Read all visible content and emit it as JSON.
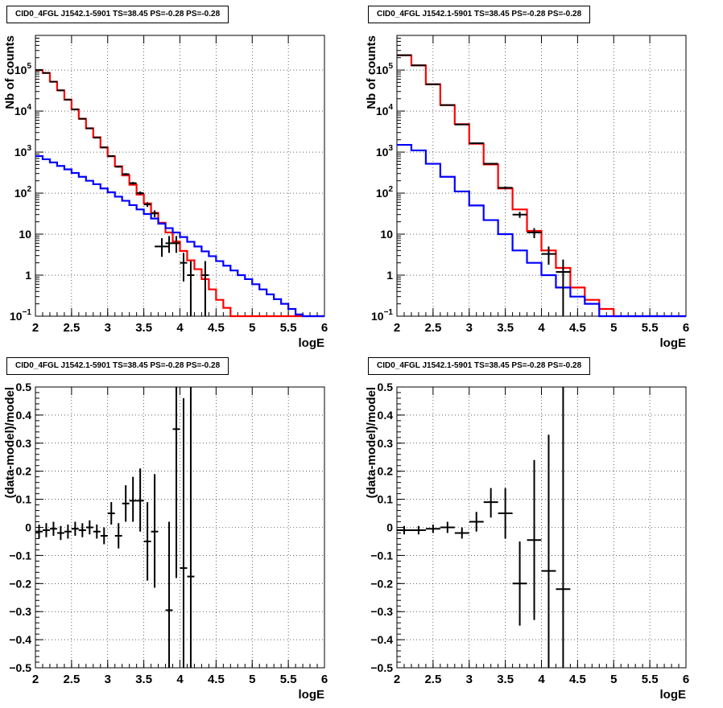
{
  "chart_data": [
    {
      "type": "line",
      "title": "CID0_4FGL J1542.1-5901 TS=38.45 PS=-0.28 PS=-0.28",
      "xlabel": "logE",
      "ylabel": "Nb of counts",
      "log_y": true,
      "xlim": [
        2,
        6
      ],
      "ylim": [
        0.1,
        700000
      ],
      "xticks": [
        "2",
        "2.5",
        "3",
        "3.5",
        "4",
        "4.5",
        "5",
        "5.5",
        "6"
      ],
      "yticks": [
        {
          "v": 0.1,
          "label": "10",
          "exp": "−1"
        },
        {
          "v": 1,
          "label": "1",
          "exp": ""
        },
        {
          "v": 10,
          "label": "10",
          "exp": ""
        },
        {
          "v": 100,
          "label": "10",
          "exp": "2"
        },
        {
          "v": 1000,
          "label": "10",
          "exp": "3"
        },
        {
          "v": 10000,
          "label": "10",
          "exp": "4"
        },
        {
          "v": 100000,
          "label": "10",
          "exp": "5"
        }
      ],
      "grid": true,
      "colors": {
        "total": "#ff0000",
        "background": "#0000ff",
        "data": "#000000"
      },
      "bin_edges": [
        2.0,
        2.1,
        2.2,
        2.3,
        2.4,
        2.5,
        2.6,
        2.7,
        2.8,
        2.9,
        3.0,
        3.1,
        3.2,
        3.3,
        3.4,
        3.5,
        3.6,
        3.7,
        3.8,
        3.9,
        4.0,
        4.1,
        4.2,
        4.3,
        4.4,
        4.5,
        4.6,
        4.7,
        4.8,
        4.9,
        5.0,
        5.1,
        5.2,
        5.3,
        5.4,
        5.5,
        5.6,
        5.7,
        5.8,
        5.9,
        6.0
      ],
      "series": [
        {
          "values": [
            100000,
            85000,
            52000,
            32000,
            19000,
            11000,
            6500,
            3800,
            2300,
            1300,
            790,
            450,
            270,
            160,
            92,
            56,
            33,
            19,
            11,
            6.6,
            3.9,
            2.3,
            1.4,
            0.8,
            0.45,
            0.25,
            0.16,
            0.1,
            0.1,
            0.1,
            0.1,
            0.1,
            0.1,
            0.1,
            0.1,
            0.1,
            0.1,
            0.1,
            0.1,
            0.1
          ]
        },
        {
          "values": [
            800,
            670,
            560,
            460,
            380,
            310,
            250,
            200,
            165,
            130,
            105,
            82,
            65,
            51,
            40,
            31,
            24,
            18,
            14,
            11,
            8.5,
            6.5,
            5.0,
            3.8,
            2.9,
            2.2,
            1.7,
            1.3,
            1.0,
            0.8,
            0.6,
            0.45,
            0.34,
            0.26,
            0.2,
            0.15,
            0.11,
            0.1,
            0.1,
            0.1
          ]
        }
      ],
      "data_points": [
        {
          "x": 2.05,
          "y": 100000,
          "xerr": 0.05,
          "ylo": 99000,
          "yhi": 101000
        },
        {
          "x": 2.15,
          "y": 85000,
          "xerr": 0.05,
          "ylo": 84000,
          "yhi": 86000
        },
        {
          "x": 2.25,
          "y": 52000,
          "xerr": 0.05,
          "ylo": 51000,
          "yhi": 53000
        },
        {
          "x": 2.35,
          "y": 32000,
          "xerr": 0.05,
          "ylo": 31500,
          "yhi": 32500
        },
        {
          "x": 2.45,
          "y": 19000,
          "xerr": 0.05,
          "ylo": 18700,
          "yhi": 19300
        },
        {
          "x": 2.55,
          "y": 11000,
          "xerr": 0.05,
          "ylo": 10800,
          "yhi": 11200
        },
        {
          "x": 2.65,
          "y": 6500,
          "xerr": 0.05,
          "ylo": 6400,
          "yhi": 6600
        },
        {
          "x": 2.75,
          "y": 3800,
          "xerr": 0.05,
          "ylo": 3730,
          "yhi": 3870
        },
        {
          "x": 2.85,
          "y": 2250,
          "xerr": 0.05,
          "ylo": 2200,
          "yhi": 2300
        },
        {
          "x": 2.95,
          "y": 1300,
          "xerr": 0.05,
          "ylo": 1260,
          "yhi": 1340
        },
        {
          "x": 3.05,
          "y": 800,
          "xerr": 0.05,
          "ylo": 770,
          "yhi": 830
        },
        {
          "x": 3.15,
          "y": 440,
          "xerr": 0.05,
          "ylo": 420,
          "yhi": 460
        },
        {
          "x": 3.25,
          "y": 290,
          "xerr": 0.05,
          "ylo": 273,
          "yhi": 307
        },
        {
          "x": 3.35,
          "y": 175,
          "xerr": 0.05,
          "ylo": 162,
          "yhi": 188
        },
        {
          "x": 3.45,
          "y": 100,
          "xerr": 0.05,
          "ylo": 90,
          "yhi": 110
        },
        {
          "x": 3.55,
          "y": 53,
          "xerr": 0.05,
          "ylo": 46,
          "yhi": 60
        },
        {
          "x": 3.65,
          "y": 32,
          "xerr": 0.05,
          "ylo": 26,
          "yhi": 38
        },
        {
          "x": 3.75,
          "y": 5,
          "xerr": 0.1,
          "ylo": 2.8,
          "yhi": 8
        },
        {
          "x": 3.85,
          "y": 6,
          "xerr": 0.05,
          "ylo": 3.5,
          "yhi": 9
        },
        {
          "x": 3.95,
          "y": 6,
          "xerr": 0.05,
          "ylo": 3.5,
          "yhi": 9
        },
        {
          "x": 4.05,
          "y": 2,
          "xerr": 0.05,
          "ylo": 0.7,
          "yhi": 3.5
        },
        {
          "x": 4.15,
          "y": 1,
          "xerr": 0.05,
          "ylo": 0.1,
          "yhi": 2.2
        },
        {
          "x": 4.35,
          "y": 1,
          "xerr": 0.05,
          "ylo": 0.1,
          "yhi": 2.2
        }
      ]
    },
    {
      "type": "line",
      "title": "CID0_4FGL J1542.1-5901 TS=38.45 PS=-0.28 PS=-0.28",
      "xlabel": "logE",
      "ylabel": "Nb of counts",
      "log_y": true,
      "xlim": [
        2,
        6
      ],
      "ylim": [
        0.1,
        700000
      ],
      "xticks": [
        "2",
        "2.5",
        "3",
        "3.5",
        "4",
        "4.5",
        "5",
        "5.5",
        "6"
      ],
      "yticks": [
        {
          "v": 0.1,
          "label": "10",
          "exp": "−1"
        },
        {
          "v": 1,
          "label": "1",
          "exp": ""
        },
        {
          "v": 10,
          "label": "10",
          "exp": ""
        },
        {
          "v": 100,
          "label": "10",
          "exp": "2"
        },
        {
          "v": 1000,
          "label": "10",
          "exp": "3"
        },
        {
          "v": 10000,
          "label": "10",
          "exp": "4"
        },
        {
          "v": 100000,
          "label": "10",
          "exp": "5"
        }
      ],
      "grid": true,
      "colors": {
        "total": "#ff0000",
        "background": "#0000ff",
        "data": "#000000"
      },
      "bin_edges": [
        2.0,
        2.2,
        2.4,
        2.6,
        2.8,
        3.0,
        3.2,
        3.4,
        3.6,
        3.8,
        4.0,
        4.2,
        4.4,
        4.6,
        4.8,
        5.0,
        5.2,
        5.4,
        5.6,
        5.8,
        6.0
      ],
      "series": [
        {
          "values": [
            230000,
            130000,
            45000,
            14000,
            4800,
            1600,
            500,
            130,
            40,
            12,
            4,
            1.5,
            0.5,
            0.25,
            0.15,
            0.1,
            0.1,
            0.1,
            0.1,
            0.1
          ]
        },
        {
          "values": [
            1500,
            1100,
            520,
            250,
            110,
            50,
            22,
            10,
            4,
            2,
            1,
            0.5,
            0.3,
            0.2,
            0.1,
            0.1,
            0.1,
            0.1,
            0.1,
            0.1
          ]
        }
      ],
      "data_points": [
        {
          "x": 2.1,
          "y": 230000,
          "xerr": 0.1,
          "ylo": 229000,
          "yhi": 231000
        },
        {
          "x": 2.3,
          "y": 130000,
          "xerr": 0.1,
          "ylo": 129000,
          "yhi": 131000
        },
        {
          "x": 2.5,
          "y": 45000,
          "xerr": 0.1,
          "ylo": 44600,
          "yhi": 45400
        },
        {
          "x": 2.7,
          "y": 14000,
          "xerr": 0.1,
          "ylo": 13800,
          "yhi": 14200
        },
        {
          "x": 2.9,
          "y": 4700,
          "xerr": 0.1,
          "ylo": 4630,
          "yhi": 4770
        },
        {
          "x": 3.1,
          "y": 1650,
          "xerr": 0.1,
          "ylo": 1610,
          "yhi": 1690
        },
        {
          "x": 3.3,
          "y": 520,
          "xerr": 0.1,
          "ylo": 498,
          "yhi": 542
        },
        {
          "x": 3.5,
          "y": 135,
          "xerr": 0.1,
          "ylo": 124,
          "yhi": 146
        },
        {
          "x": 3.7,
          "y": 30,
          "xerr": 0.1,
          "ylo": 25,
          "yhi": 35
        },
        {
          "x": 3.9,
          "y": 11,
          "xerr": 0.1,
          "ylo": 8,
          "yhi": 14
        },
        {
          "x": 4.1,
          "y": 3.3,
          "xerr": 0.1,
          "ylo": 1.8,
          "yhi": 5
        },
        {
          "x": 4.3,
          "y": 1.2,
          "xerr": 0.1,
          "ylo": 0.1,
          "yhi": 2.4
        }
      ]
    },
    {
      "type": "scatter",
      "title": "CID0_4FGL J1542.1-5901 TS=38.45 PS=-0.28 PS=-0.28",
      "xlabel": "logE",
      "ylabel": "(data-model)/model",
      "log_y": false,
      "xlim": [
        2,
        6
      ],
      "ylim": [
        -0.5,
        0.5
      ],
      "xticks": [
        "2",
        "2.5",
        "3",
        "3.5",
        "4",
        "4.5",
        "5",
        "5.5",
        "6"
      ],
      "yticks": [
        {
          "v": -0.5,
          "label": "−0.5"
        },
        {
          "v": -0.4,
          "label": "−0.4"
        },
        {
          "v": -0.3,
          "label": "−0.3"
        },
        {
          "v": -0.2,
          "label": "−0.2"
        },
        {
          "v": -0.1,
          "label": "−0.1"
        },
        {
          "v": 0,
          "label": "0"
        },
        {
          "v": 0.1,
          "label": "0.1"
        },
        {
          "v": 0.2,
          "label": "0.2"
        },
        {
          "v": 0.3,
          "label": "0.3"
        },
        {
          "v": 0.4,
          "label": "0.4"
        },
        {
          "v": 0.5,
          "label": "0.5"
        }
      ],
      "grid": true,
      "colors": {
        "data": "#000000"
      },
      "data_points": [
        {
          "x": 2.05,
          "y": -0.015,
          "xerr": 0.05,
          "ylo": -0.04,
          "yhi": 0.01
        },
        {
          "x": 2.15,
          "y": -0.01,
          "xerr": 0.05,
          "ylo": -0.035,
          "yhi": 0.015
        },
        {
          "x": 2.25,
          "y": -0.005,
          "xerr": 0.05,
          "ylo": -0.03,
          "yhi": 0.02
        },
        {
          "x": 2.35,
          "y": -0.02,
          "xerr": 0.05,
          "ylo": -0.045,
          "yhi": 0.005
        },
        {
          "x": 2.45,
          "y": -0.015,
          "xerr": 0.05,
          "ylo": -0.04,
          "yhi": 0.01
        },
        {
          "x": 2.55,
          "y": -0.005,
          "xerr": 0.05,
          "ylo": -0.03,
          "yhi": 0.02
        },
        {
          "x": 2.65,
          "y": -0.01,
          "xerr": 0.05,
          "ylo": -0.035,
          "yhi": 0.015
        },
        {
          "x": 2.75,
          "y": 0.0,
          "xerr": 0.05,
          "ylo": -0.025,
          "yhi": 0.025
        },
        {
          "x": 2.85,
          "y": -0.015,
          "xerr": 0.05,
          "ylo": -0.04,
          "yhi": 0.01
        },
        {
          "x": 2.95,
          "y": -0.03,
          "xerr": 0.05,
          "ylo": -0.06,
          "yhi": 0.0
        },
        {
          "x": 3.05,
          "y": 0.05,
          "xerr": 0.05,
          "ylo": 0.01,
          "yhi": 0.09
        },
        {
          "x": 3.15,
          "y": -0.03,
          "xerr": 0.05,
          "ylo": -0.075,
          "yhi": 0.015
        },
        {
          "x": 3.25,
          "y": 0.085,
          "xerr": 0.05,
          "ylo": 0.02,
          "yhi": 0.15
        },
        {
          "x": 3.35,
          "y": 0.095,
          "xerr": 0.05,
          "ylo": 0.02,
          "yhi": 0.18
        },
        {
          "x": 3.45,
          "y": 0.095,
          "xerr": 0.05,
          "ylo": -0.015,
          "yhi": 0.21
        },
        {
          "x": 3.55,
          "y": -0.05,
          "xerr": 0.05,
          "ylo": -0.19,
          "yhi": 0.09
        },
        {
          "x": 3.65,
          "y": -0.015,
          "xerr": 0.05,
          "ylo": -0.215,
          "yhi": 0.19
        },
        {
          "x": 3.85,
          "y": -0.295,
          "xerr": 0.05,
          "ylo": -0.5,
          "yhi": 0.02
        },
        {
          "x": 3.95,
          "y": 0.35,
          "xerr": 0.05,
          "ylo": -0.18,
          "yhi": 0.5
        },
        {
          "x": 4.05,
          "y": -0.145,
          "xerr": 0.05,
          "ylo": -0.5,
          "yhi": 0.46
        },
        {
          "x": 4.15,
          "y": -0.175,
          "xerr": 0.05,
          "ylo": -0.5,
          "yhi": 0.5
        }
      ]
    },
    {
      "type": "scatter",
      "title": "CID0_4FGL J1542.1-5901 TS=38.45 PS=-0.28 PS=-0.28",
      "xlabel": "logE",
      "ylabel": "(data-model)/model",
      "log_y": false,
      "xlim": [
        2,
        6
      ],
      "ylim": [
        -0.5,
        0.5
      ],
      "xticks": [
        "2",
        "2.5",
        "3",
        "3.5",
        "4",
        "4.5",
        "5",
        "5.5",
        "6"
      ],
      "yticks": [
        {
          "v": -0.5,
          "label": "−0.5"
        },
        {
          "v": -0.4,
          "label": "−0.4"
        },
        {
          "v": -0.3,
          "label": "−0.3"
        },
        {
          "v": -0.2,
          "label": "−0.2"
        },
        {
          "v": -0.1,
          "label": "−0.1"
        },
        {
          "v": 0,
          "label": "0"
        },
        {
          "v": 0.1,
          "label": "0.1"
        },
        {
          "v": 0.2,
          "label": "0.2"
        },
        {
          "v": 0.3,
          "label": "0.3"
        },
        {
          "v": 0.4,
          "label": "0.4"
        },
        {
          "v": 0.5,
          "label": "0.5"
        }
      ],
      "grid": true,
      "colors": {
        "data": "#000000"
      },
      "data_points": [
        {
          "x": 2.1,
          "y": -0.01,
          "xerr": 0.1,
          "ylo": -0.025,
          "yhi": 0.005
        },
        {
          "x": 2.3,
          "y": -0.01,
          "xerr": 0.1,
          "ylo": -0.025,
          "yhi": 0.005
        },
        {
          "x": 2.5,
          "y": -0.005,
          "xerr": 0.1,
          "ylo": -0.02,
          "yhi": 0.01
        },
        {
          "x": 2.7,
          "y": 0.0,
          "xerr": 0.1,
          "ylo": -0.02,
          "yhi": 0.02
        },
        {
          "x": 2.9,
          "y": -0.02,
          "xerr": 0.1,
          "ylo": -0.04,
          "yhi": 0.0
        },
        {
          "x": 3.1,
          "y": 0.02,
          "xerr": 0.1,
          "ylo": -0.015,
          "yhi": 0.055
        },
        {
          "x": 3.3,
          "y": 0.09,
          "xerr": 0.1,
          "ylo": 0.035,
          "yhi": 0.14
        },
        {
          "x": 3.5,
          "y": 0.05,
          "xerr": 0.1,
          "ylo": -0.04,
          "yhi": 0.14
        },
        {
          "x": 3.7,
          "y": -0.2,
          "xerr": 0.1,
          "ylo": -0.35,
          "yhi": -0.05
        },
        {
          "x": 3.9,
          "y": -0.045,
          "xerr": 0.1,
          "ylo": -0.33,
          "yhi": 0.24
        },
        {
          "x": 4.1,
          "y": -0.155,
          "xerr": 0.1,
          "ylo": -0.5,
          "yhi": 0.33
        },
        {
          "x": 4.3,
          "y": -0.22,
          "xerr": 0.1,
          "ylo": -0.5,
          "yhi": 0.5
        }
      ]
    }
  ]
}
